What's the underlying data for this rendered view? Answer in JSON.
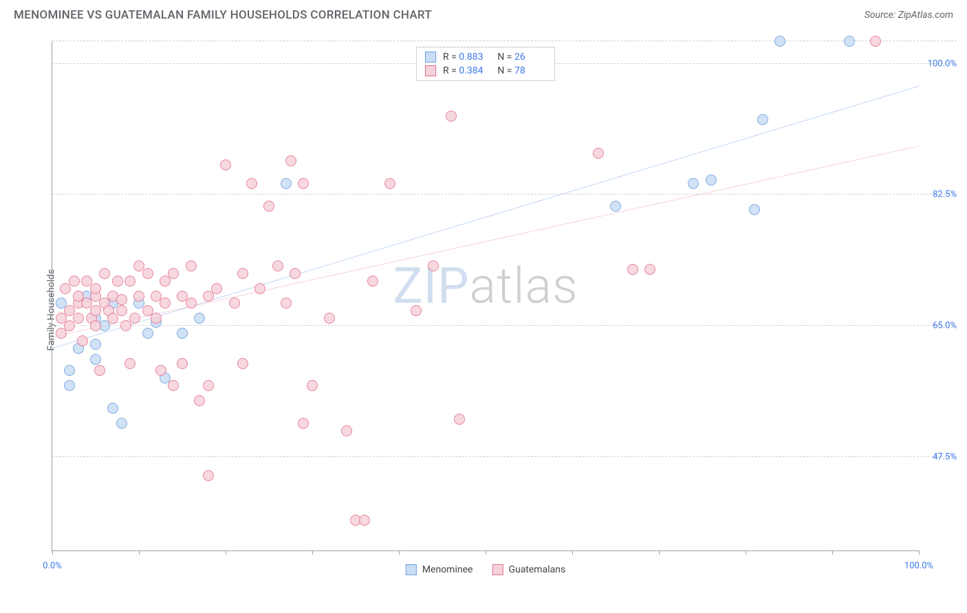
{
  "header": {
    "title": "MENOMINEE VS GUATEMALAN FAMILY HOUSEHOLDS CORRELATION CHART",
    "source": "Source: ZipAtlas.com"
  },
  "y_axis": {
    "label": "Family Households"
  },
  "chart": {
    "type": "scatter",
    "background_color": "#ffffff",
    "grid_color": "#d0d0d0",
    "axis_color": "#9aa0a6",
    "tick_label_color": "#3b78e7",
    "tick_label_fontsize": 13,
    "title_fontsize": 17,
    "xlim": [
      0,
      100
    ],
    "ylim": [
      35,
      103
    ],
    "x_ticks": [
      0,
      10,
      20,
      30,
      40,
      50,
      60,
      70,
      80,
      90,
      100
    ],
    "x_tick_labels": {
      "0": "0.0%",
      "100": "100.0%"
    },
    "y_grid": [
      47.5,
      65.0,
      82.5,
      100.0,
      103.0
    ],
    "y_tick_labels": {
      "47.5": "47.5%",
      "65.0": "65.0%",
      "82.5": "82.5%",
      "100.0": "100.0%"
    },
    "marker_radius": 8,
    "marker_stroke_width": 1.2,
    "trend_stroke_width": 2,
    "watermark": {
      "part1": "ZIP",
      "part2": "atlas"
    },
    "series": [
      {
        "key": "menominee",
        "label": "Menominee",
        "fill": "#c9ddf5",
        "stroke": "#6a9ed8",
        "trend_color": "#1a62d6",
        "R": "0.883",
        "N": "26",
        "trend": {
          "x1": 0,
          "y1": 62.0,
          "x2": 100,
          "y2": 97.0
        },
        "points": [
          [
            1,
            68
          ],
          [
            2,
            59
          ],
          [
            2,
            57
          ],
          [
            3,
            62
          ],
          [
            4,
            69
          ],
          [
            5,
            62.5
          ],
          [
            5,
            60.5
          ],
          [
            6,
            65
          ],
          [
            7,
            68
          ],
          [
            7,
            54
          ],
          [
            8,
            52
          ],
          [
            10,
            68
          ],
          [
            11,
            64
          ],
          [
            12,
            65.5
          ],
          [
            13,
            58
          ],
          [
            15,
            64
          ],
          [
            17,
            66
          ],
          [
            27,
            84
          ],
          [
            65,
            81
          ],
          [
            74,
            84
          ],
          [
            76,
            84.5
          ],
          [
            81,
            80.5
          ],
          [
            82,
            92.5
          ],
          [
            84,
            103
          ],
          [
            92,
            103
          ],
          [
            5,
            66
          ]
        ]
      },
      {
        "key": "guatemalans",
        "label": "Guatemalans",
        "fill": "#f6d2da",
        "stroke": "#e36f8e",
        "trend_color": "#dd5577",
        "R": "0.384",
        "N": "78",
        "trend": {
          "x1": 0,
          "y1": 63.5,
          "x2": 100,
          "y2": 89.0
        },
        "points": [
          [
            1,
            66
          ],
          [
            1,
            64
          ],
          [
            1.5,
            70
          ],
          [
            2,
            67
          ],
          [
            2,
            65
          ],
          [
            2.5,
            71
          ],
          [
            3,
            68
          ],
          [
            3,
            66
          ],
          [
            3,
            69
          ],
          [
            3.5,
            63
          ],
          [
            4,
            68
          ],
          [
            4,
            71
          ],
          [
            4.5,
            66
          ],
          [
            5,
            69
          ],
          [
            5,
            67
          ],
          [
            5,
            65
          ],
          [
            5,
            70
          ],
          [
            5.5,
            59
          ],
          [
            6,
            68
          ],
          [
            6,
            72
          ],
          [
            6.5,
            67
          ],
          [
            7,
            69
          ],
          [
            7,
            66
          ],
          [
            7.5,
            71
          ],
          [
            8,
            67
          ],
          [
            8,
            68.5
          ],
          [
            8.5,
            65
          ],
          [
            9,
            71
          ],
          [
            9,
            60
          ],
          [
            9.5,
            66
          ],
          [
            10,
            69
          ],
          [
            10,
            73
          ],
          [
            11,
            67
          ],
          [
            11,
            72
          ],
          [
            12,
            66
          ],
          [
            12,
            69
          ],
          [
            12.5,
            59
          ],
          [
            13,
            68
          ],
          [
            13,
            71
          ],
          [
            14,
            72
          ],
          [
            14,
            57
          ],
          [
            15,
            69
          ],
          [
            15,
            60
          ],
          [
            16,
            68
          ],
          [
            16,
            73
          ],
          [
            17,
            55
          ],
          [
            18,
            69
          ],
          [
            18,
            57
          ],
          [
            18,
            45
          ],
          [
            19,
            70
          ],
          [
            20,
            86.5
          ],
          [
            21,
            68
          ],
          [
            22,
            72
          ],
          [
            22,
            60
          ],
          [
            23,
            84
          ],
          [
            24,
            70
          ],
          [
            25,
            81
          ],
          [
            26,
            73
          ],
          [
            27,
            68
          ],
          [
            27.5,
            87
          ],
          [
            28,
            72
          ],
          [
            29,
            52
          ],
          [
            29,
            84
          ],
          [
            30,
            57
          ],
          [
            32,
            66
          ],
          [
            34,
            51
          ],
          [
            35,
            39
          ],
          [
            36,
            39
          ],
          [
            37,
            71
          ],
          [
            39,
            84
          ],
          [
            42,
            67
          ],
          [
            44,
            73
          ],
          [
            46,
            93
          ],
          [
            47,
            52.5
          ],
          [
            63,
            88
          ],
          [
            67,
            72.5
          ],
          [
            69,
            72.5
          ],
          [
            95,
            103
          ]
        ]
      }
    ],
    "legend_bottom": [
      {
        "key": "menominee",
        "label": "Menominee"
      },
      {
        "key": "guatemalans",
        "label": "Guatemalans"
      }
    ]
  }
}
